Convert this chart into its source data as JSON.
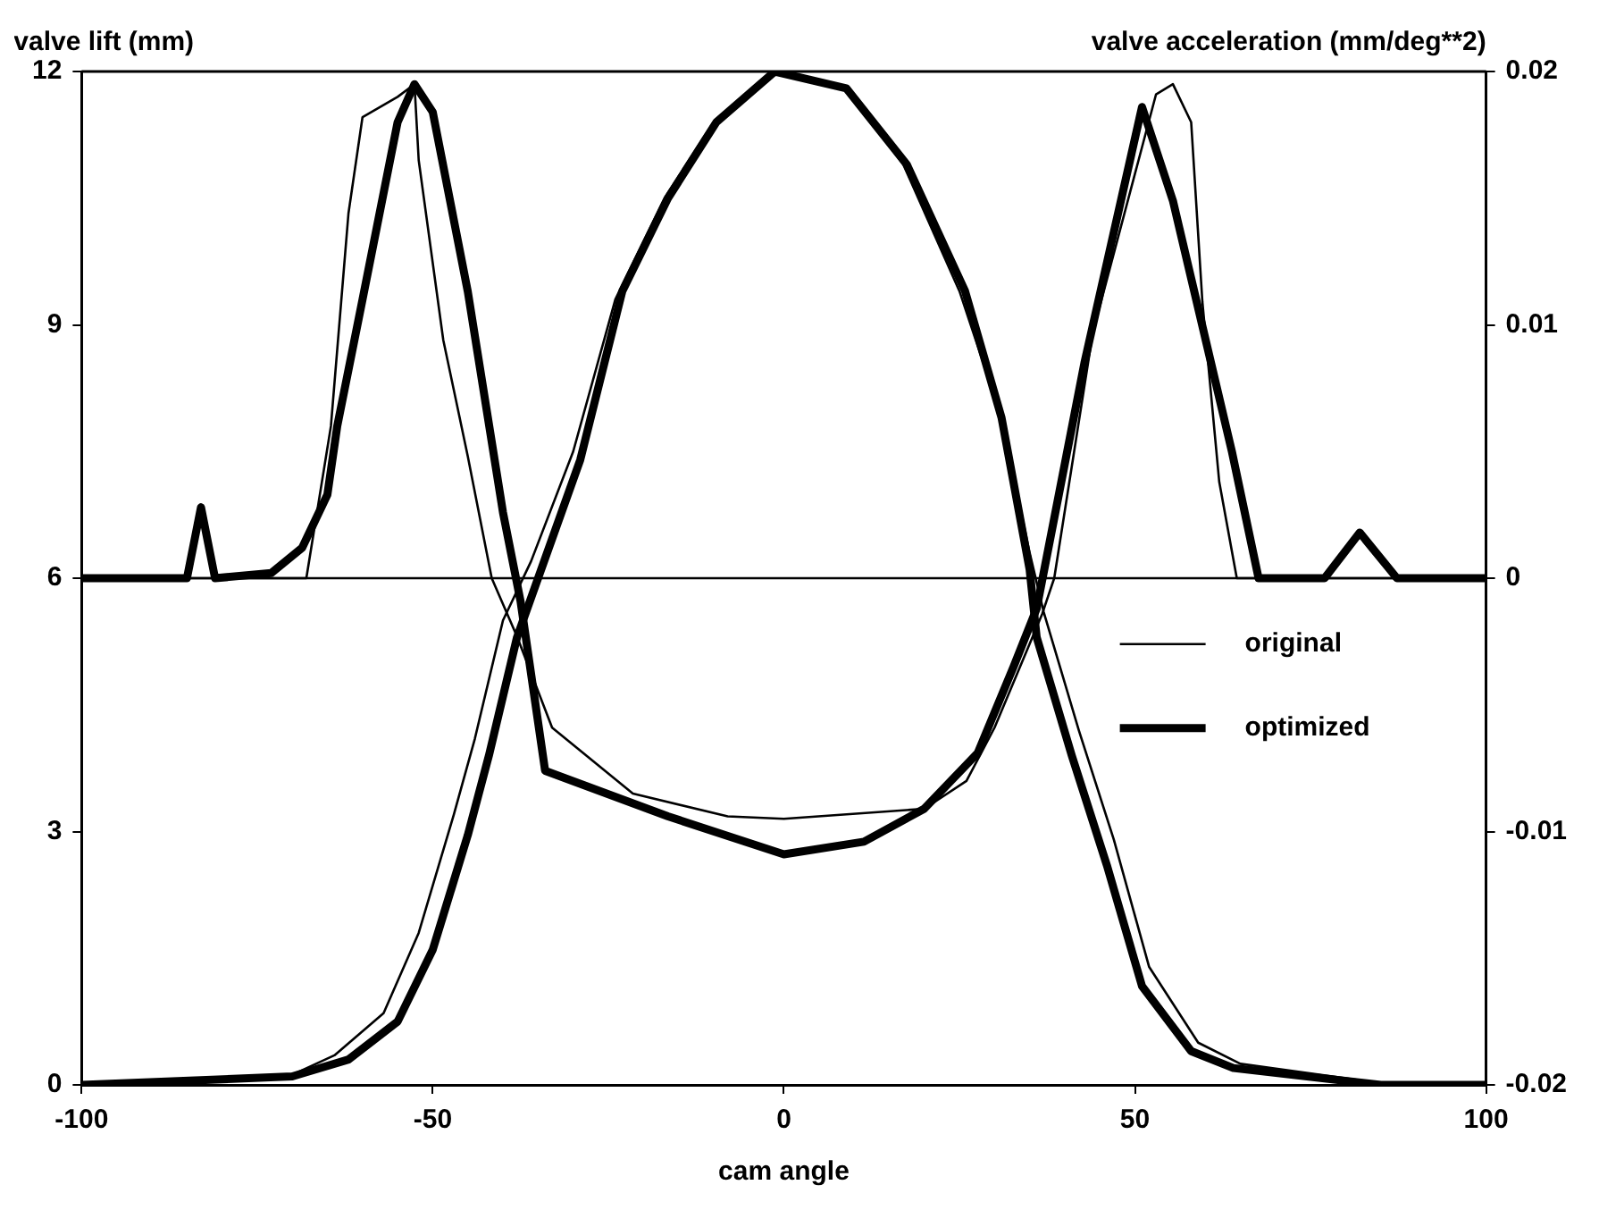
{
  "chart_data": {
    "type": "line",
    "xlabel": "cam angle",
    "ylabel": "valve lift (mm)",
    "y2label": "valve acceleration (mm/deg**2)",
    "xlim": [
      -100,
      100
    ],
    "xticks": [
      -100,
      -50,
      0,
      50,
      100
    ],
    "ylim": [
      0,
      12
    ],
    "yticks": [
      0,
      3,
      6,
      9,
      12
    ],
    "y2lim": [
      -0.02,
      0.02
    ],
    "y2ticks": [
      -0.02,
      -0.01,
      0,
      0.01,
      0.02
    ],
    "grid": false,
    "legend": "right",
    "marker": "none",
    "line_style": "solid",
    "ref_lines": [
      {
        "axis": "y2",
        "value": 0,
        "color": "#000000"
      }
    ],
    "series": [
      {
        "name": "original",
        "color": "#000000",
        "x": [
          -100,
          -70,
          -64,
          -57,
          -52,
          -47,
          -44,
          -40,
          -36,
          -30,
          -24,
          -17,
          -10,
          -1,
          9,
          17,
          25,
          31,
          35,
          37,
          42,
          47,
          52,
          59,
          65,
          85,
          100
        ],
        "values": [
          0,
          0.12,
          0.35,
          0.85,
          1.8,
          3.2,
          4.1,
          5.5,
          6.2,
          7.5,
          9.3,
          10.5,
          11.4,
          12,
          11.8,
          10.9,
          9.4,
          7.9,
          6.3,
          5.6,
          4.2,
          2.9,
          1.4,
          0.5,
          0.25,
          0.02,
          0
        ]
      },
      {
        "name": "optimized",
        "color": "#000000",
        "x": [
          -100,
          -70,
          -62,
          -55,
          -50,
          -45,
          -42,
          -38,
          -35,
          -29,
          -23,
          -16.5,
          -9.6,
          -1.3,
          8.9,
          17.5,
          25.8,
          31,
          35,
          36,
          41,
          46,
          51,
          58,
          64,
          85,
          100
        ],
        "values": [
          0,
          0.1,
          0.3,
          0.75,
          1.6,
          2.96,
          3.9,
          5.3,
          6,
          7.4,
          9.4,
          10.5,
          11.4,
          12,
          11.8,
          10.9,
          9.4,
          7.9,
          6.1,
          5.3,
          3.9,
          2.6,
          1.17,
          0.4,
          0.2,
          0,
          0
        ]
      },
      {
        "color": "#000000",
        "axis": "y2",
        "x": [
          -100,
          -68,
          -64.5,
          -62,
          -60,
          -55,
          -52.6,
          -52,
          -48.5,
          -45,
          -41.6,
          -38,
          -33,
          -21.5,
          -8,
          0,
          20,
          26,
          30,
          36.8,
          38.5,
          44,
          53,
          55.4,
          58,
          59.6,
          62,
          64.5,
          100
        ],
        "values": [
          0,
          0,
          0.006,
          0.0144,
          0.0182,
          0.019,
          0.0195,
          0.0165,
          0.0094,
          0.0048,
          0,
          -0.0023,
          -0.0059,
          -0.0085,
          -0.0094,
          -0.0095,
          -0.0091,
          -0.008,
          -0.0059,
          -0.0014,
          0,
          0.0097,
          0.0191,
          0.0195,
          0.018,
          0.0109,
          0.0038,
          0,
          0
        ]
      },
      {
        "color": "#000000",
        "axis": "y2",
        "x": [
          -100,
          -85,
          -83,
          -81,
          -73,
          -68.6,
          -65,
          -63.6,
          -60,
          -55,
          -52.6,
          -50,
          -45,
          -40,
          -37.5,
          -34,
          -16.5,
          0,
          11.4,
          20,
          27.6,
          32.7,
          36,
          42.8,
          51,
          55.4,
          63.8,
          67.6,
          77,
          82,
          87.3,
          100
        ],
        "values": [
          0,
          0,
          0.0028,
          0,
          0.0002,
          0.0012,
          0.0033,
          0.006,
          0.011,
          0.018,
          0.0195,
          0.0184,
          0.0113,
          0.0026,
          -0.0009,
          -0.0076,
          -0.0094,
          -0.0109,
          -0.0104,
          -0.0091,
          -0.0069,
          -0.0035,
          -0.0012,
          0.0085,
          0.0186,
          0.0149,
          0.005,
          0,
          0,
          0.0018,
          0,
          0
        ]
      }
    ]
  }
}
